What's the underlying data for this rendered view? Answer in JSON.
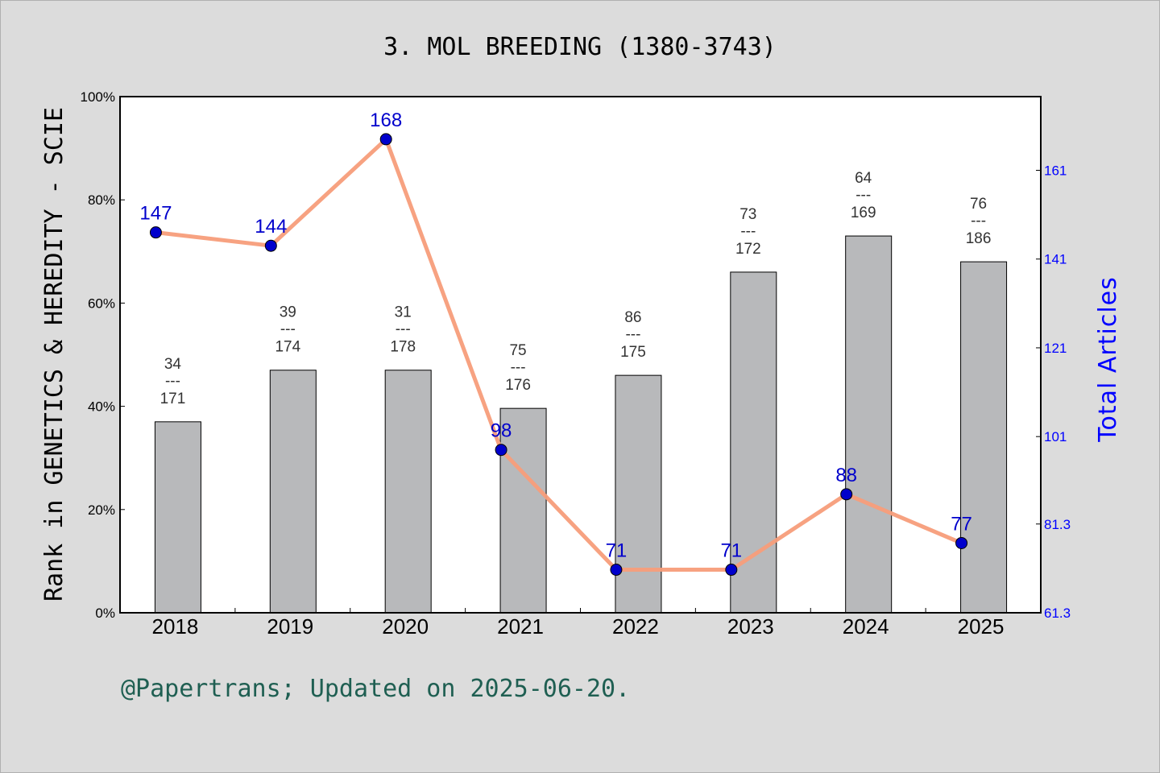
{
  "title": "3. MOL BREEDING (1380-3743)",
  "footer": "@Papertrans; Updated on 2025-06-20.",
  "colors": {
    "background": "#dcdcdc",
    "plot_background": "#ffffff",
    "bar_fill": "#b8b9bb",
    "line": "#f79d7a",
    "marker": "#0000cc",
    "right_axis": "#0000ff",
    "footer": "#1f5f52"
  },
  "chart_data": {
    "type": "bar",
    "categories": [
      "2018",
      "2019",
      "2020",
      "2021",
      "2022",
      "2023",
      "2024",
      "2025"
    ],
    "ylabel": "Rank in GENETICS & HEREDITY - SCIE",
    "y2label": "Total Articles",
    "ylim": [
      0,
      100
    ],
    "y2lim": [
      61.3,
      177.6
    ],
    "yticks": [
      "0%",
      "20%",
      "40%",
      "60%",
      "80%",
      "100%"
    ],
    "y2ticks": [
      "61.3",
      "81.3",
      "101",
      "121",
      "141",
      "161"
    ],
    "grid": false,
    "series": [
      {
        "kind": "bar",
        "values": [
          37,
          47,
          47,
          39.6,
          46,
          66,
          73,
          68
        ],
        "ranks": [
          "34",
          "39",
          "31",
          "75",
          "86",
          "73",
          "64",
          "76"
        ],
        "totals": [
          "171",
          "174",
          "178",
          "176",
          "175",
          "172",
          "169",
          "186"
        ],
        "separator": "---"
      },
      {
        "kind": "line",
        "axis": "right",
        "values": [
          147,
          144,
          168,
          98,
          71,
          71,
          88,
          77
        ],
        "labels": [
          "147",
          "144",
          "168",
          "98",
          "71",
          "71",
          "88",
          "77"
        ]
      }
    ]
  }
}
